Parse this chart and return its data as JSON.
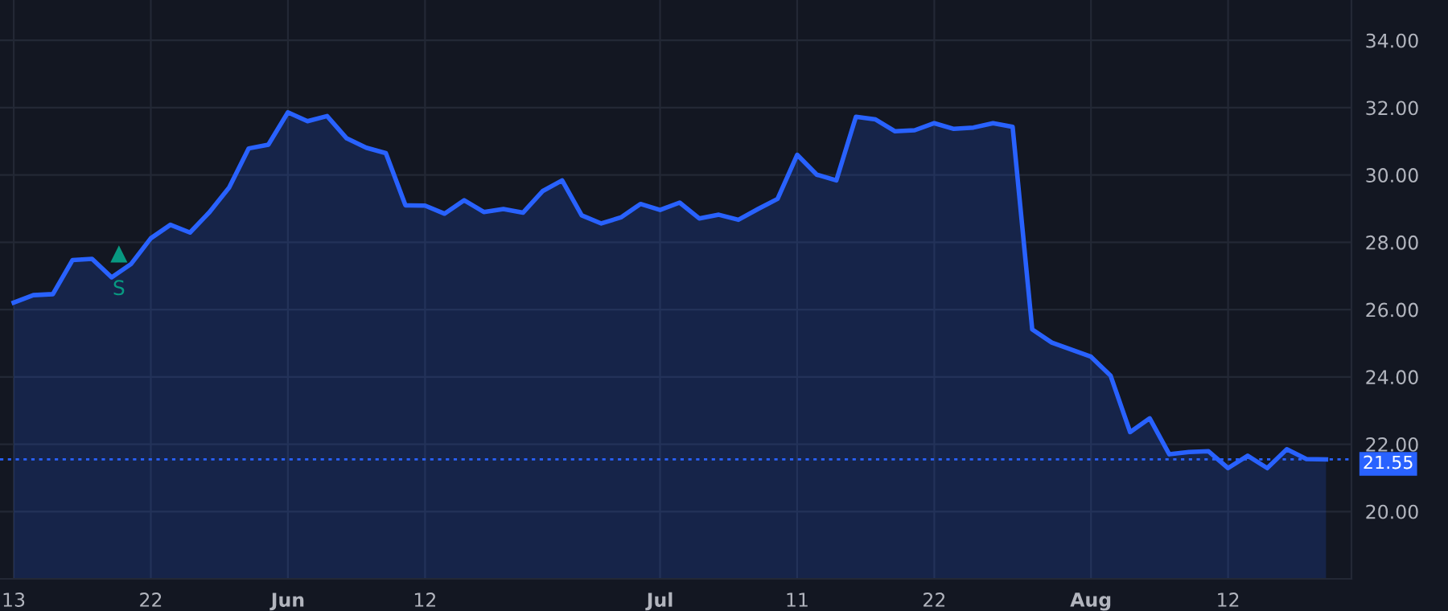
{
  "chart_data": {
    "type": "area",
    "categories": [
      "13",
      null,
      null,
      null,
      null,
      null,
      null,
      "22",
      null,
      null,
      null,
      null,
      null,
      null,
      "Jun",
      null,
      null,
      null,
      null,
      null,
      null,
      "12",
      null,
      null,
      null,
      null,
      null,
      null,
      null,
      null,
      null,
      null,
      null,
      "Jul",
      null,
      null,
      null,
      null,
      null,
      null,
      "11",
      null,
      null,
      null,
      null,
      null,
      null,
      "22",
      null,
      null,
      null,
      null,
      null,
      null,
      null,
      "Aug",
      null,
      null,
      null,
      null,
      null,
      null,
      "12",
      null,
      null,
      null,
      null,
      null
    ],
    "series": [
      {
        "color": "#2962ff",
        "values": [
          26.21,
          26.43,
          26.46,
          27.47,
          27.51,
          26.96,
          27.36,
          28.12,
          28.52,
          28.29,
          28.9,
          29.63,
          30.79,
          30.9,
          31.86,
          31.6,
          31.75,
          31.09,
          30.81,
          30.65,
          29.1,
          29.09,
          28.85,
          29.25,
          28.9,
          28.99,
          28.88,
          29.52,
          29.84,
          28.8,
          28.56,
          28.74,
          29.14,
          28.96,
          29.18,
          28.71,
          28.82,
          28.67,
          28.99,
          29.29,
          30.6,
          30.01,
          29.84,
          31.73,
          31.65,
          31.3,
          31.33,
          31.54,
          31.37,
          31.41,
          31.54,
          31.43,
          25.41,
          25.02,
          24.81,
          24.6,
          24.04,
          22.36,
          22.77,
          21.7,
          21.77,
          21.79,
          21.29,
          21.66,
          21.29,
          21.85,
          21.56,
          21.55
        ]
      }
    ],
    "ylim": [
      18.0,
      35.2
    ],
    "yticks": [
      {
        "value": 20,
        "label": "20.00"
      },
      {
        "value": 22,
        "label": "22.00"
      },
      {
        "value": 24,
        "label": "24.00"
      },
      {
        "value": 26,
        "label": "26.00"
      },
      {
        "value": 28,
        "label": "28.00"
      },
      {
        "value": 30,
        "label": "30.00"
      },
      {
        "value": 32,
        "label": "32.00"
      },
      {
        "value": 34,
        "label": "34.00"
      }
    ],
    "ref_lines": [
      {
        "axis": "y",
        "value": 21.55,
        "label": "21.55",
        "color": "#2962ff",
        "line_style": "dotted"
      }
    ],
    "annotations": [
      "S"
    ],
    "grid": true
  }
}
